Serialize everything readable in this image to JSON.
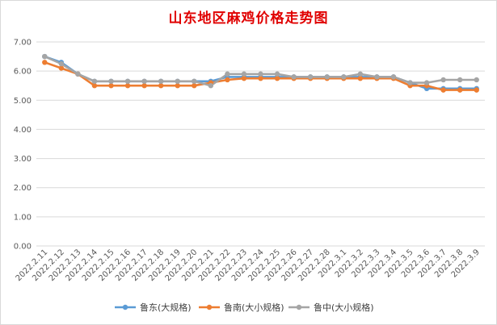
{
  "chart_data": {
    "type": "line",
    "title": "山东地区麻鸡价格走势图",
    "xlabel": "",
    "ylabel": "",
    "ylim": [
      0,
      7
    ],
    "yticks": [
      "0.00",
      "1.00",
      "2.00",
      "3.00",
      "4.00",
      "5.00",
      "6.00",
      "7.00"
    ],
    "grid": true,
    "legend_position": "bottom",
    "categories": [
      "2022.2.11",
      "2022.2.12",
      "2022.2.13",
      "2022.2.14",
      "2022.2.15",
      "2022.2.16",
      "2022.2.17",
      "2022.2.18",
      "2022.2.19",
      "2022.2.20",
      "2022.2.21",
      "2022.2.22",
      "2022.2.23",
      "2022.2.24",
      "2022.2.25",
      "2022.2.26",
      "2022.2.27",
      "2022.2.28",
      "2022.3.1",
      "2022.3.2",
      "2022.3.3",
      "2022.3.4",
      "2022.3.5",
      "2022.3.6",
      "2022.3.7",
      "2022.3.8",
      "2022.3.9"
    ],
    "series": [
      {
        "name": "鲁东(大规格)",
        "color": "#5b9bd5",
        "values": [
          6.5,
          6.3,
          5.9,
          5.65,
          5.65,
          5.65,
          5.65,
          5.65,
          5.65,
          5.65,
          5.65,
          5.8,
          5.8,
          5.8,
          5.8,
          5.8,
          5.8,
          5.8,
          5.8,
          5.8,
          5.8,
          5.8,
          5.6,
          5.4,
          5.4,
          5.4,
          5.4
        ]
      },
      {
        "name": "鲁南(大小规格)",
        "color": "#ed7d31",
        "values": [
          6.3,
          6.1,
          5.9,
          5.5,
          5.5,
          5.5,
          5.5,
          5.5,
          5.5,
          5.5,
          5.6,
          5.7,
          5.75,
          5.75,
          5.75,
          5.75,
          5.75,
          5.75,
          5.75,
          5.75,
          5.75,
          5.75,
          5.5,
          5.5,
          5.35,
          5.35,
          5.35
        ]
      },
      {
        "name": "鲁中(大小规格)",
        "color": "#a5a5a5",
        "values": [
          6.5,
          6.25,
          5.9,
          5.65,
          5.65,
          5.65,
          5.65,
          5.65,
          5.65,
          5.65,
          5.5,
          5.9,
          5.9,
          5.9,
          5.9,
          5.8,
          5.8,
          5.8,
          5.8,
          5.9,
          5.8,
          5.8,
          5.6,
          5.6,
          5.7,
          5.7,
          5.7
        ]
      }
    ]
  }
}
